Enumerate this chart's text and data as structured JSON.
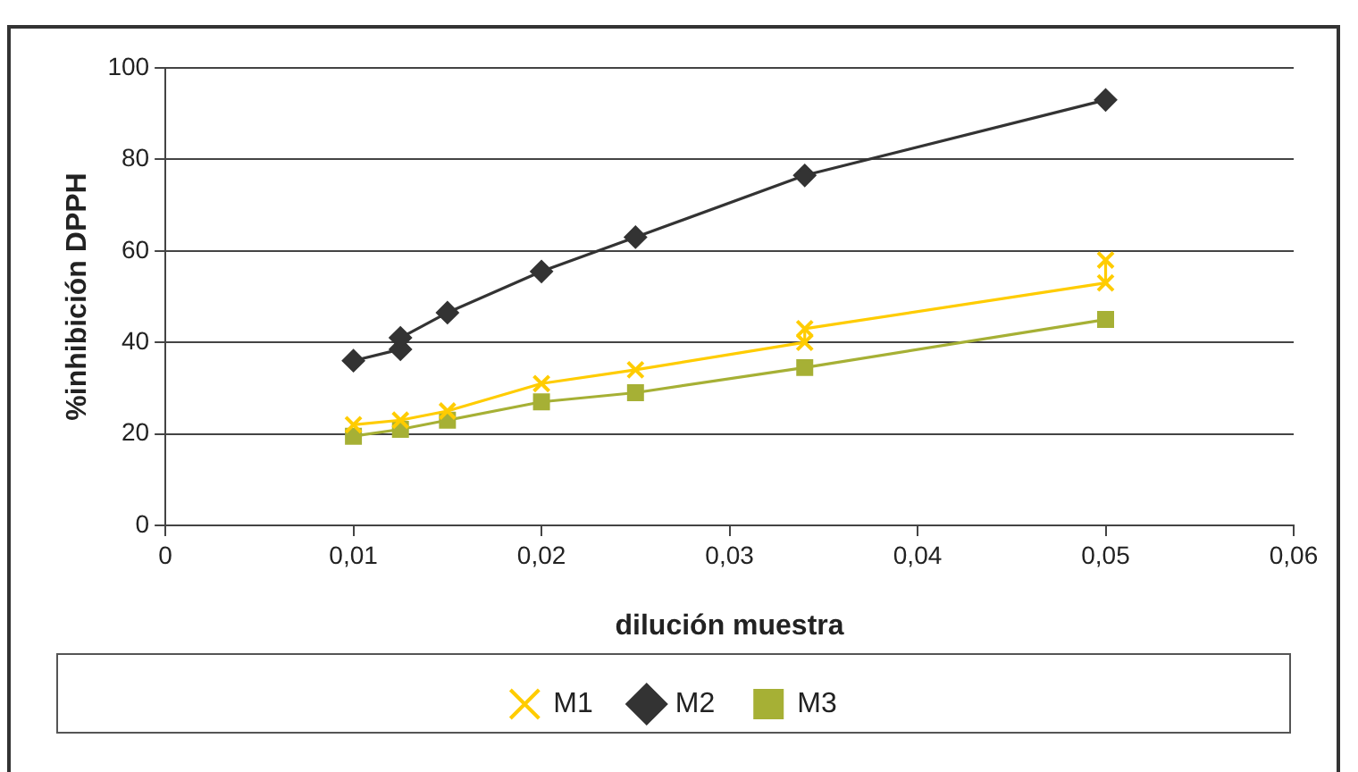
{
  "chart_data": {
    "type": "line",
    "xlabel": "dilución muestra",
    "ylabel": "%inhibición DPPH",
    "xlim": [
      0,
      0.06
    ],
    "xticks": [
      {
        "value": 0,
        "label": "0"
      },
      {
        "value": 0.01,
        "label": "0,01"
      },
      {
        "value": 0.02,
        "label": "0,02"
      },
      {
        "value": 0.03,
        "label": "0,03"
      },
      {
        "value": 0.04,
        "label": "0,04"
      },
      {
        "value": 0.05,
        "label": "0,05"
      },
      {
        "value": 0.06,
        "label": "0,06"
      }
    ],
    "ylim": [
      0,
      100
    ],
    "yticks": [
      0,
      20,
      40,
      60,
      80,
      100
    ],
    "grid": "y",
    "legend": "bottom",
    "series": [
      {
        "name": "M1",
        "color": "#ffcc00",
        "marker": "cross",
        "x": [
          0.01,
          0.0125,
          0.015,
          0.02,
          0.025,
          0.034,
          0.034,
          0.05,
          0.05
        ],
        "values": [
          22,
          23,
          25,
          31,
          34,
          40,
          43,
          53,
          58
        ]
      },
      {
        "name": "M2",
        "color": "#333333",
        "marker": "diamond",
        "x": [
          0.01,
          0.0125,
          0.0125,
          0.015,
          0.02,
          0.025,
          0.034,
          0.05
        ],
        "values": [
          36,
          38.5,
          41,
          46.5,
          55.5,
          63,
          76.5,
          93
        ]
      },
      {
        "name": "M3",
        "color": "#a6b035",
        "marker": "square",
        "x": [
          0.01,
          0.0125,
          0.015,
          0.02,
          0.025,
          0.034,
          0.05
        ],
        "values": [
          19.5,
          21,
          23,
          27,
          29,
          34.5,
          45
        ]
      }
    ]
  }
}
